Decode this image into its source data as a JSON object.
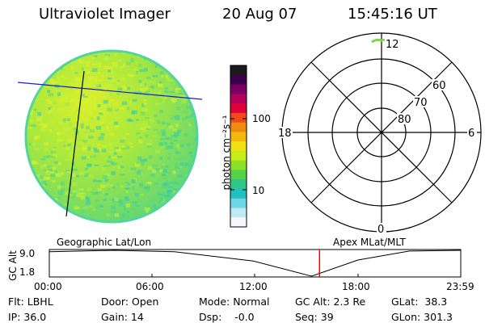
{
  "header": {
    "title": "Ultraviolet Imager",
    "date": "20 Aug 07",
    "time": "15:45:16 UT"
  },
  "image_panel": {
    "fill_color": "#7fde55",
    "texture_colors": [
      "#c7f23a",
      "#e3f02a",
      "#9ee84a",
      "#5fd777",
      "#43cf9a",
      "#2fc9b4",
      "#b6ee3c"
    ],
    "edge_color": "#52d49a",
    "lat_line_color": "#1a1ad6",
    "lon_line_color": "#000000"
  },
  "colorbar": {
    "label": "photon cm⁻²s⁻¹",
    "ticks": [
      "100",
      "10"
    ],
    "colors": [
      "#1a1a1a",
      "#3d004d",
      "#7a0066",
      "#b3005a",
      "#e0003a",
      "#f04a1a",
      "#f08a12",
      "#f2b80e",
      "#f0e014",
      "#c8ec18",
      "#8ee028",
      "#53d24a",
      "#2ec78a",
      "#22c0c0",
      "#6fd6e8",
      "#bfeaf2",
      "#f4f8fa"
    ]
  },
  "polar": {
    "mlt_labels": {
      "top": "12",
      "right": "6",
      "bottom": "0",
      "left": "18"
    },
    "lat_labels": [
      "60",
      "70",
      "80"
    ]
  },
  "track": {
    "left_label": "Geographic Lat/Lon",
    "right_label": "Apex MLat/MLT",
    "axis_title": "GC Alt",
    "yticks": [
      "9.0",
      "1.8"
    ],
    "xticks": [
      "00:00",
      "06:00",
      "12:00",
      "18:00",
      "23:59"
    ],
    "marker_color": "#e00000",
    "altitude_profile": {
      "hours": [
        0,
        3.8,
        7.3,
        11.9,
        15.3,
        18.0,
        21.0,
        23.98
      ],
      "gc_alt_re": [
        8.6,
        9.0,
        8.6,
        6.0,
        1.8,
        6.3,
        8.8,
        9.0
      ]
    },
    "marker_hour": 15.76
  },
  "meta": {
    "row1": {
      "flt": "Flt: LBHL",
      "door": "Door: Open",
      "mode": "Mode: Normal",
      "gcalt": "GC Alt: 2.3 Re",
      "glat": "GLat:  38.3"
    },
    "row2": {
      "ip": "IP: 36.0",
      "gain": "Gain: 14",
      "dsp": "Dsp:    -0.0",
      "seq": "Seq: 39",
      "glon": "GLon: 301.3"
    }
  }
}
